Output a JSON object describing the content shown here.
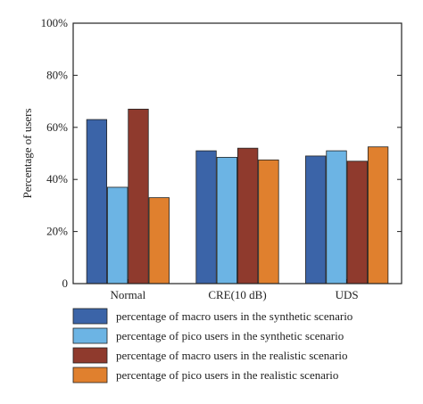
{
  "chart_data": {
    "type": "bar",
    "title": "",
    "xlabel": "",
    "ylabel": "Percentage of users",
    "ylim": [
      0,
      100
    ],
    "yticks": [
      0,
      20,
      40,
      60,
      80,
      100
    ],
    "ytick_labels": [
      "0",
      "20%",
      "40%",
      "60%",
      "80%",
      "100%"
    ],
    "categories": [
      "Normal",
      "CRE(10 dB)",
      "UDS"
    ],
    "grid": false,
    "legend_position": "bottom",
    "series": [
      {
        "name": "percentage of macro users in the synthetic scenario",
        "color": "#3b64a8",
        "values": [
          63,
          51,
          49
        ]
      },
      {
        "name": "percentage of pico users in the synthetic scenario",
        "color": "#6cb4e4",
        "values": [
          37,
          48.5,
          51
        ]
      },
      {
        "name": "percentage of macro users in the realistic scenario",
        "color": "#8f3a2d",
        "values": [
          67,
          52,
          47
        ]
      },
      {
        "name": "percentage of pico users in the realistic scenario",
        "color": "#e0802e",
        "values": [
          33,
          47.5,
          52.5
        ]
      }
    ]
  }
}
